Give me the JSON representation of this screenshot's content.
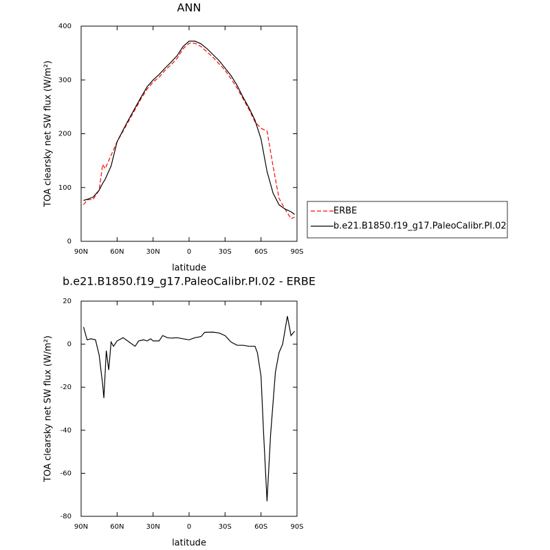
{
  "chart_data": [
    {
      "type": "line",
      "title": "ANN",
      "x_label": "latitude",
      "y_label": "TOA clearsky net SW flux (W/m²)",
      "x": [
        88,
        85,
        80,
        75,
        72,
        70,
        65,
        60,
        55,
        50,
        45,
        40,
        35,
        30,
        25,
        20,
        15,
        10,
        5,
        0,
        -5,
        -10,
        -15,
        -20,
        -25,
        -30,
        -35,
        -40,
        -45,
        -50,
        -55,
        -60,
        -65,
        -70,
        -75,
        -80,
        -85,
        -88
      ],
      "series": [
        {
          "name": "ERBE",
          "color": "#ff0000",
          "line_style": "dashed",
          "values": [
            68,
            77,
            78,
            95,
            143,
            135,
            160,
            185,
            205,
            225,
            245,
            265,
            283,
            296,
            305,
            318,
            328,
            340,
            358,
            368,
            368,
            362,
            352,
            342,
            330,
            318,
            302,
            285,
            265,
            245,
            222,
            210,
            205,
            140,
            80,
            60,
            42,
            45
          ]
        },
        {
          "name": "b.e21.B1850.f19_g17.PaleoCalibr.PI.02",
          "color": "#000000",
          "line_style": "solid",
          "values": [
            76,
            78,
            82,
            95,
            108,
            115,
            140,
            185,
            207,
            228,
            248,
            268,
            287,
            300,
            310,
            322,
            333,
            345,
            362,
            372,
            372,
            367,
            358,
            347,
            336,
            322,
            308,
            290,
            268,
            248,
            225,
            190,
            130,
            90,
            68,
            60,
            55,
            50
          ]
        }
      ],
      "xlim": [
        90,
        -90
      ],
      "xticks": [
        {
          "value": 90,
          "label": "90N"
        },
        {
          "value": 60,
          "label": "60N"
        },
        {
          "value": 30,
          "label": "30N"
        },
        0,
        {
          "value": -30,
          "label": "30S"
        },
        {
          "value": -60,
          "label": "60S"
        },
        {
          "value": -90,
          "label": "90S"
        }
      ],
      "ylim": [
        0,
        400
      ],
      "yticks": [
        0,
        100,
        200,
        300,
        400
      ],
      "legend": "outside-right"
    },
    {
      "type": "line",
      "title": "b.e21.B1850.f19_g17.PaleoCalibr.PI.02 - ERBE",
      "x_label": "latitude",
      "y_label": "TOA clearsky net SW flux (W/m²)",
      "x": [
        88,
        85,
        82,
        78,
        75,
        72,
        71,
        69,
        67,
        65,
        63,
        60,
        55,
        50,
        45,
        42,
        38,
        35,
        32,
        30,
        25,
        22,
        18,
        15,
        10,
        5,
        0,
        -5,
        -10,
        -13,
        -20,
        -25,
        -30,
        -35,
        -40,
        -45,
        -50,
        -55,
        -57,
        -60,
        -62,
        -65,
        -68,
        -72,
        -75,
        -78,
        -82,
        -85,
        -88
      ],
      "values": [
        8,
        2,
        2.5,
        2,
        -5,
        -19,
        -25,
        -3,
        -12,
        1,
        -1,
        1.5,
        3,
        1,
        -1,
        1.5,
        2,
        1.5,
        2.5,
        1.5,
        1.5,
        4,
        3,
        2.8,
        3,
        2.5,
        2,
        3,
        3.5,
        5.5,
        5.6,
        5.2,
        4,
        1,
        -0.5,
        -0.5,
        -1,
        -1,
        -4,
        -15,
        -40,
        -73,
        -42,
        -13,
        -4,
        0,
        13,
        4,
        6
      ],
      "color": "#000000",
      "xlim": [
        90,
        -90
      ],
      "xticks": [
        {
          "value": 90,
          "label": "90N"
        },
        {
          "value": 60,
          "label": "60N"
        },
        {
          "value": 30,
          "label": "30N"
        },
        0,
        {
          "value": -30,
          "label": "30S"
        },
        {
          "value": -60,
          "label": "60S"
        },
        {
          "value": -90,
          "label": "90S"
        }
      ],
      "ylim": [
        -80,
        20
      ],
      "yticks": [
        -80,
        -60,
        -40,
        -20,
        0,
        20
      ]
    }
  ]
}
